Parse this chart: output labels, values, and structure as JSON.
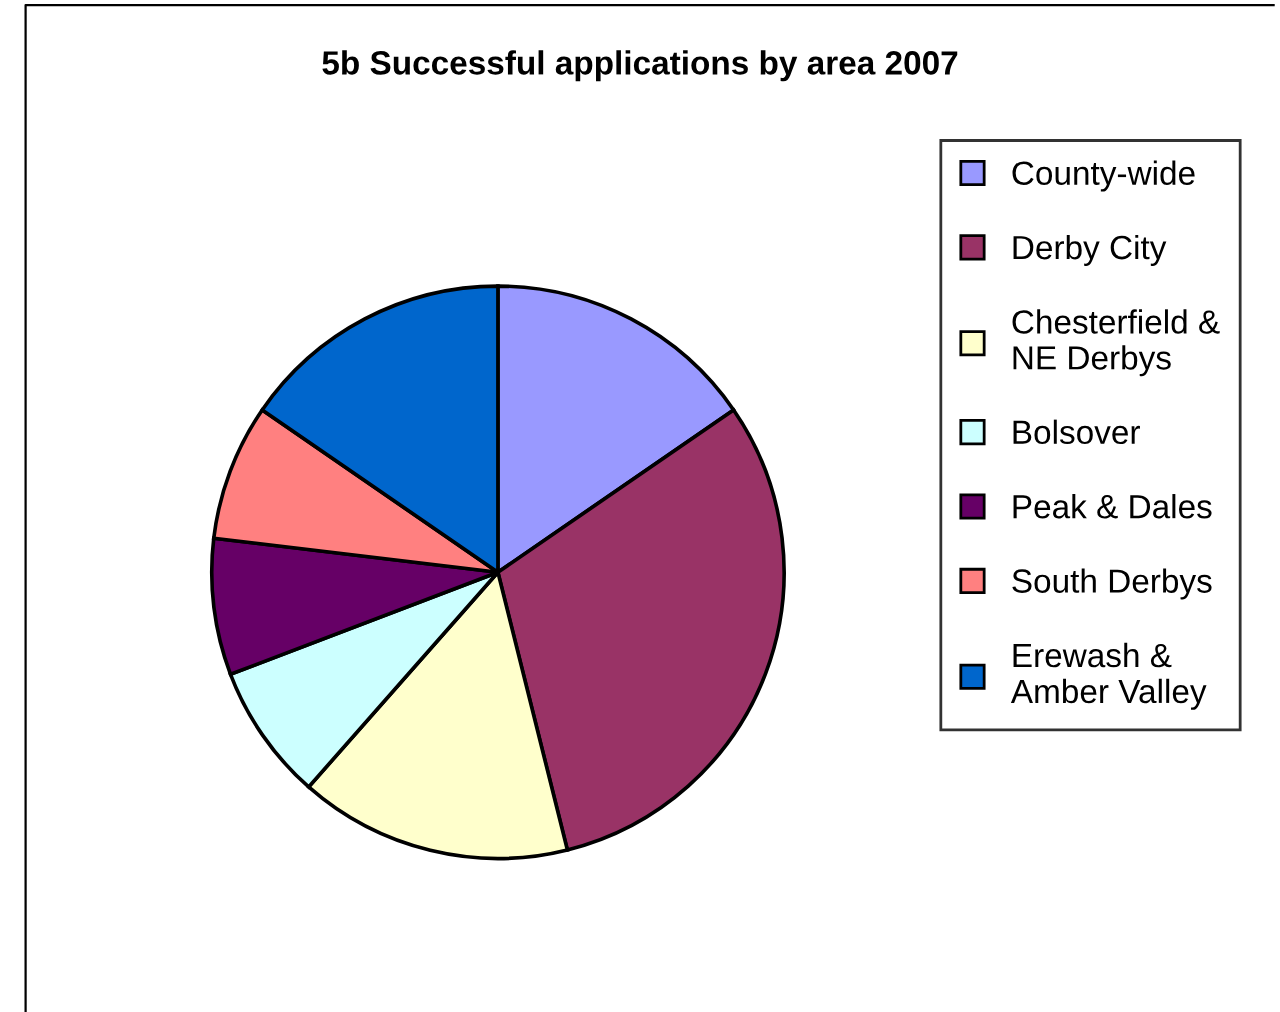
{
  "chart_data": {
    "type": "pie",
    "title": "5b Successful applications by area 2007",
    "categories": [
      "County-wide",
      "Derby City",
      "Chesterfield & NE Derbys",
      "Bolsover",
      "Peak & Dales",
      "South Derbys",
      "Erewash & Amber Valley"
    ],
    "values": [
      15.4,
      30.7,
      15.4,
      7.7,
      7.7,
      7.7,
      15.4
    ],
    "colors": [
      "#9999ff",
      "#993366",
      "#ffffcc",
      "#ccffff",
      "#660066",
      "#ff8080",
      "#0066cc"
    ],
    "legend": "right"
  }
}
